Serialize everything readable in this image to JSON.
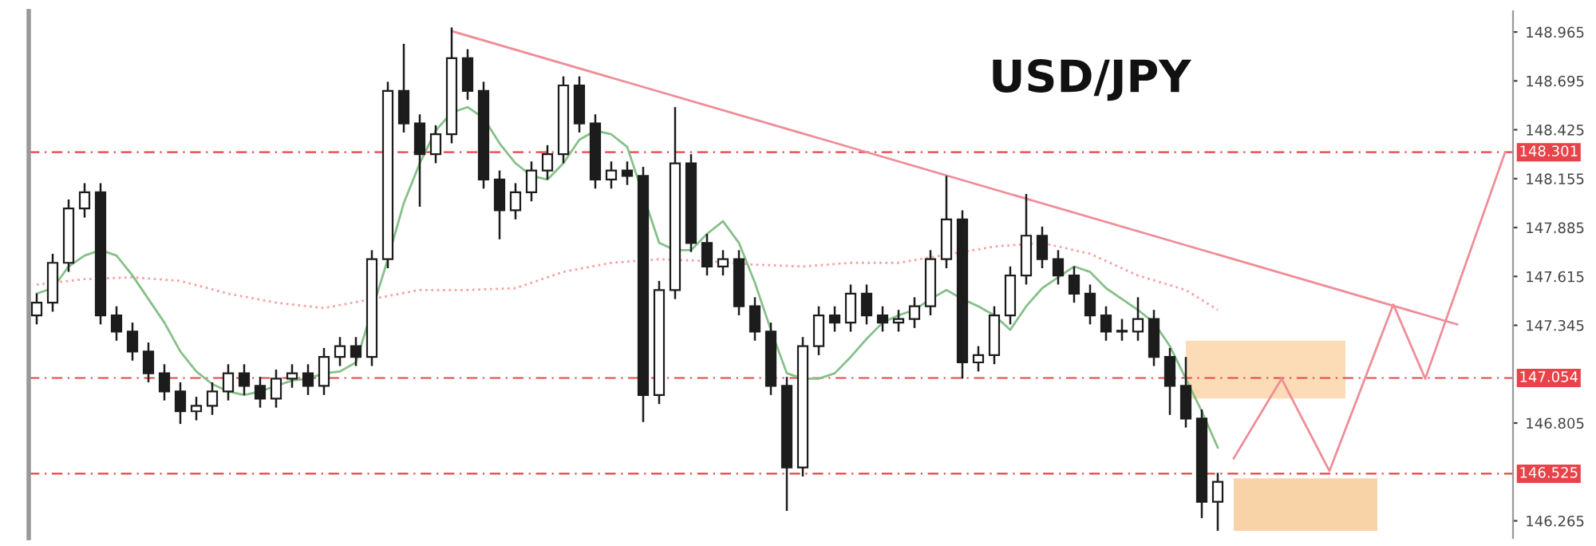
{
  "chart_data": {
    "type": "candlestick",
    "title": "USD/JPY",
    "categories": [
      null,
      null,
      null,
      null,
      null,
      null,
      null,
      null,
      null,
      null,
      null,
      null,
      null,
      null,
      null,
      null,
      null,
      null,
      null,
      null,
      null,
      null,
      null,
      null,
      null,
      null,
      null,
      null,
      null,
      null,
      null,
      null,
      null,
      null,
      null,
      null,
      null,
      null,
      null,
      null,
      null,
      null,
      null,
      null,
      null,
      null,
      null,
      null,
      null,
      null,
      null,
      null,
      null,
      null,
      null,
      null,
      null,
      null,
      null,
      null,
      null,
      null,
      null,
      null,
      null,
      null,
      null,
      null,
      null,
      null,
      null,
      null,
      null,
      null,
      null,
      null,
      null,
      null,
      null,
      null,
      null,
      null,
      null,
      null,
      null,
      null,
      null,
      null,
      null,
      null,
      null,
      null,
      null
    ],
    "ylim": [
      146.17,
      149.08
    ],
    "yticks": [
      148.965,
      148.695,
      148.425,
      148.155,
      147.885,
      147.615,
      147.345,
      146.805,
      146.265
    ],
    "tick_labels": "y",
    "grid": false,
    "ref_lines": [
      {
        "axis": "y",
        "value": 148.301,
        "label": "148.301",
        "color": "#e8434a",
        "line_style": "dashed"
      },
      {
        "axis": "y",
        "value": 147.054,
        "label": "147.054",
        "color": "#e8434a",
        "line_style": "dashed"
      },
      {
        "axis": "y",
        "value": 146.525,
        "label": "146.525",
        "color": "#e8434a",
        "line_style": "dashed"
      }
    ],
    "series": [
      {
        "type": "line",
        "color": "#fcdcb6",
        "values": [
          null,
          null,
          null,
          null,
          null,
          null,
          null,
          null,
          null,
          null,
          null,
          null,
          null,
          null,
          null,
          null,
          null,
          null,
          null,
          null,
          null,
          null,
          null,
          null,
          null,
          null,
          null,
          null,
          null,
          null,
          null,
          null,
          null,
          null,
          null,
          null,
          null,
          null,
          null,
          null,
          null,
          null,
          null,
          null,
          null,
          null,
          null,
          null,
          null,
          null,
          null,
          null,
          null,
          null,
          null,
          null,
          null,
          null,
          null,
          null,
          null,
          null,
          null,
          null,
          null,
          null,
          null,
          null,
          null,
          null,
          null,
          null,
          null,
          null,
          null,
          null,
          null,
          null,
          null,
          null,
          null,
          null,
          null,
          null,
          null,
          null,
          null,
          null,
          null,
          null,
          null,
          null,
          null
        ],
        "upper": [
          null,
          null,
          null,
          null,
          null,
          null,
          null,
          null,
          null,
          null,
          null,
          null,
          null,
          null,
          null,
          null,
          null,
          null,
          null,
          null,
          null,
          null,
          null,
          null,
          null,
          null,
          null,
          null,
          null,
          null,
          null,
          null,
          null,
          null,
          null,
          null,
          null,
          null,
          null,
          null,
          null,
          null,
          null,
          null,
          null,
          null,
          null,
          null,
          null,
          null,
          null,
          null,
          null,
          null,
          null,
          null,
          null,
          null,
          null,
          null,
          null,
          null,
          null,
          null,
          null,
          null,
          null,
          null,
          null,
          null,
          null,
          null,
          147.26,
          147.26,
          147.26,
          147.26,
          147.26,
          147.26,
          147.26,
          147.26,
          147.26,
          147.26,
          147.26,
          null,
          null,
          null,
          null,
          null,
          null,
          null,
          null,
          null,
          null
        ],
        "lower": [
          null,
          null,
          null,
          null,
          null,
          null,
          null,
          null,
          null,
          null,
          null,
          null,
          null,
          null,
          null,
          null,
          null,
          null,
          null,
          null,
          null,
          null,
          null,
          null,
          null,
          null,
          null,
          null,
          null,
          null,
          null,
          null,
          null,
          null,
          null,
          null,
          null,
          null,
          null,
          null,
          null,
          null,
          null,
          null,
          null,
          null,
          null,
          null,
          null,
          null,
          null,
          null,
          null,
          null,
          null,
          null,
          null,
          null,
          null,
          null,
          null,
          null,
          null,
          null,
          null,
          null,
          null,
          null,
          null,
          null,
          null,
          null,
          146.94,
          146.94,
          146.94,
          146.94,
          146.94,
          146.94,
          146.94,
          146.94,
          146.94,
          146.94,
          146.94,
          null,
          null,
          null,
          null,
          null,
          null,
          null,
          null,
          null,
          null
        ]
      },
      {
        "type": "line",
        "color": "#f9d3a8",
        "values": [
          null,
          null,
          null,
          null,
          null,
          null,
          null,
          null,
          null,
          null,
          null,
          null,
          null,
          null,
          null,
          null,
          null,
          null,
          null,
          null,
          null,
          null,
          null,
          null,
          null,
          null,
          null,
          null,
          null,
          null,
          null,
          null,
          null,
          null,
          null,
          null,
          null,
          null,
          null,
          null,
          null,
          null,
          null,
          null,
          null,
          null,
          null,
          null,
          null,
          null,
          null,
          null,
          null,
          null,
          null,
          null,
          null,
          null,
          null,
          null,
          null,
          null,
          null,
          null,
          null,
          null,
          null,
          null,
          null,
          null,
          null,
          null,
          null,
          null,
          null,
          null,
          null,
          null,
          null,
          null,
          null,
          null,
          null,
          null,
          null,
          null,
          null,
          null,
          null,
          null,
          null,
          null,
          null
        ],
        "upper": [
          null,
          null,
          null,
          null,
          null,
          null,
          null,
          null,
          null,
          null,
          null,
          null,
          null,
          null,
          null,
          null,
          null,
          null,
          null,
          null,
          null,
          null,
          null,
          null,
          null,
          null,
          null,
          null,
          null,
          null,
          null,
          null,
          null,
          null,
          null,
          null,
          null,
          null,
          null,
          null,
          null,
          null,
          null,
          null,
          null,
          null,
          null,
          null,
          null,
          null,
          null,
          null,
          null,
          null,
          null,
          null,
          null,
          null,
          null,
          null,
          null,
          null,
          null,
          null,
          null,
          null,
          null,
          null,
          null,
          null,
          null,
          null,
          null,
          null,
          null,
          146.5,
          146.5,
          146.5,
          146.5,
          146.5,
          146.5,
          146.5,
          146.5,
          146.5,
          146.5,
          null,
          null,
          null,
          null,
          null,
          null,
          null,
          null
        ],
        "lower": [
          null,
          null,
          null,
          null,
          null,
          null,
          null,
          null,
          null,
          null,
          null,
          null,
          null,
          null,
          null,
          null,
          null,
          null,
          null,
          null,
          null,
          null,
          null,
          null,
          null,
          null,
          null,
          null,
          null,
          null,
          null,
          null,
          null,
          null,
          null,
          null,
          null,
          null,
          null,
          null,
          null,
          null,
          null,
          null,
          null,
          null,
          null,
          null,
          null,
          null,
          null,
          null,
          null,
          null,
          null,
          null,
          null,
          null,
          null,
          null,
          null,
          null,
          null,
          null,
          null,
          null,
          null,
          null,
          null,
          null,
          null,
          null,
          null,
          null,
          null,
          146.21,
          146.21,
          146.21,
          146.21,
          146.21,
          146.21,
          146.21,
          146.21,
          146.21,
          146.21,
          null,
          null,
          null,
          null,
          null,
          null,
          null,
          null
        ]
      },
      {
        "type": "line",
        "color": "#f4a3a3",
        "line_style": "dotted",
        "values": [
          147.57,
          null,
          null,
          147.6,
          null,
          null,
          147.61,
          null,
          null,
          147.59,
          null,
          null,
          147.52,
          null,
          null,
          147.47,
          null,
          null,
          147.44,
          null,
          null,
          null,
          null,
          null,
          147.54,
          null,
          null,
          147.54,
          null,
          null,
          147.55,
          null,
          null,
          147.64,
          null,
          null,
          147.69,
          null,
          null,
          147.71,
          null,
          null,
          147.7,
          null,
          null,
          147.68,
          null,
          null,
          147.67,
          null,
          null,
          147.69,
          null,
          null,
          147.69,
          null,
          null,
          null,
          null,
          null,
          147.78,
          null,
          null,
          147.8,
          null,
          null,
          147.74,
          null,
          null,
          147.62,
          null,
          null,
          147.54,
          null,
          147.43,
          null,
          null,
          null,
          null,
          null,
          null,
          null,
          null,
          null,
          null,
          null,
          null,
          null,
          null,
          null,
          null,
          null,
          null
        ]
      },
      {
        "type": "line",
        "color": "#86c08a",
        "line_style": "solid",
        "values": [
          147.52,
          147.55,
          147.67,
          147.73,
          147.76,
          147.73,
          147.62,
          147.49,
          147.36,
          147.2,
          147.09,
          147.02,
          146.98,
          146.96,
          146.98,
          147.01,
          147.04,
          147.05,
          147.08,
          147.09,
          147.14,
          null,
          147.71,
          148.02,
          148.24,
          148.42,
          148.52,
          148.55,
          148.49,
          148.35,
          148.24,
          148.17,
          148.15,
          148.24,
          148.37,
          148.42,
          148.4,
          148.33,
          null,
          147.8,
          147.76,
          147.76,
          147.85,
          147.92,
          147.8,
          147.58,
          147.32,
          147.08,
          147.05,
          147.05,
          147.08,
          147.17,
          147.27,
          147.36,
          147.4,
          147.43,
          147.49,
          147.54,
          147.49,
          147.45,
          147.4,
          147.32,
          147.45,
          147.55,
          147.61,
          147.67,
          147.64,
          147.55,
          147.49,
          147.43,
          147.36,
          147.23,
          147.05,
          146.87,
          146.67,
          null,
          null,
          null,
          null,
          null,
          null,
          null,
          null,
          null,
          null,
          null,
          null,
          null,
          null,
          null,
          null,
          null,
          null
        ]
      },
      {
        "color": "#1c1c1c",
        "ohlc": [
          [
            147.4,
            147.52,
            147.35,
            147.47
          ],
          [
            147.47,
            147.74,
            147.42,
            147.69
          ],
          [
            147.69,
            148.04,
            147.64,
            147.99
          ],
          [
            147.99,
            148.13,
            147.94,
            148.08
          ],
          [
            148.08,
            148.13,
            147.35,
            147.4
          ],
          [
            147.4,
            147.45,
            147.26,
            147.31
          ],
          [
            147.31,
            147.36,
            147.15,
            147.2
          ],
          [
            147.2,
            147.25,
            147.03,
            147.08
          ],
          [
            147.08,
            147.13,
            146.93,
            146.98
          ],
          [
            146.98,
            147.03,
            146.8,
            146.87
          ],
          [
            146.87,
            146.95,
            146.82,
            146.9
          ],
          [
            146.9,
            147.03,
            146.85,
            146.98
          ],
          [
            146.98,
            147.13,
            146.93,
            147.08
          ],
          [
            147.08,
            147.13,
            146.96,
            147.01
          ],
          [
            147.01,
            147.06,
            146.89,
            146.94
          ],
          [
            146.94,
            147.1,
            146.89,
            147.05
          ],
          [
            147.05,
            147.13,
            147.0,
            147.08
          ],
          [
            147.08,
            147.13,
            146.96,
            147.01
          ],
          [
            147.01,
            147.22,
            146.96,
            147.17
          ],
          [
            147.17,
            147.28,
            147.12,
            147.23
          ],
          [
            147.23,
            147.28,
            147.12,
            147.17
          ],
          [
            147.17,
            147.76,
            147.12,
            147.71
          ],
          [
            147.71,
            148.69,
            147.66,
            148.64
          ],
          [
            148.64,
            148.9,
            148.41,
            148.46
          ],
          [
            148.46,
            148.51,
            148.0,
            148.29
          ],
          [
            148.29,
            148.45,
            148.24,
            148.4
          ],
          [
            148.4,
            148.99,
            148.35,
            148.82
          ],
          [
            148.82,
            148.87,
            148.59,
            148.64
          ],
          [
            148.64,
            148.69,
            148.1,
            148.15
          ],
          [
            148.15,
            148.2,
            147.82,
            147.98
          ],
          [
            147.98,
            148.13,
            147.93,
            148.08
          ],
          [
            148.08,
            148.25,
            148.03,
            148.2
          ],
          [
            148.2,
            148.34,
            148.15,
            148.29
          ],
          [
            148.29,
            148.72,
            148.24,
            148.67
          ],
          [
            148.67,
            148.72,
            148.41,
            148.46
          ],
          [
            148.46,
            148.51,
            148.1,
            148.15
          ],
          [
            148.15,
            148.25,
            148.1,
            148.2
          ],
          [
            148.2,
            148.25,
            148.12,
            148.17
          ],
          [
            148.17,
            148.22,
            146.81,
            146.96
          ],
          [
            146.96,
            147.59,
            146.91,
            147.54
          ],
          [
            147.54,
            148.55,
            147.49,
            148.24
          ],
          [
            148.24,
            148.29,
            147.75,
            147.8
          ],
          [
            147.8,
            147.85,
            147.62,
            147.67
          ],
          [
            147.67,
            147.76,
            147.62,
            147.71
          ],
          [
            147.71,
            147.76,
            147.4,
            147.45
          ],
          [
            147.45,
            147.5,
            147.26,
            147.31
          ],
          [
            147.31,
            147.36,
            146.96,
            147.01
          ],
          [
            147.01,
            147.06,
            146.32,
            146.56
          ],
          [
            146.56,
            147.28,
            146.51,
            147.23
          ],
          [
            147.23,
            147.45,
            147.18,
            147.4
          ],
          [
            147.4,
            147.45,
            147.31,
            147.36
          ],
          [
            147.36,
            147.57,
            147.31,
            147.52
          ],
          [
            147.52,
            147.57,
            147.35,
            147.4
          ],
          [
            147.4,
            147.45,
            147.31,
            147.36
          ],
          [
            147.36,
            147.43,
            147.31,
            147.38
          ],
          [
            147.38,
            147.5,
            147.33,
            147.45
          ],
          [
            147.45,
            147.76,
            147.4,
            147.71
          ],
          [
            147.71,
            148.17,
            147.66,
            147.93
          ],
          [
            147.93,
            147.98,
            147.05,
            147.14
          ],
          [
            147.14,
            147.23,
            147.09,
            147.18
          ],
          [
            147.18,
            147.45,
            147.13,
            147.4
          ],
          [
            147.4,
            147.67,
            147.35,
            147.62
          ],
          [
            147.62,
            148.07,
            147.57,
            147.84
          ],
          [
            147.84,
            147.89,
            147.66,
            147.71
          ],
          [
            147.71,
            147.76,
            147.57,
            147.62
          ],
          [
            147.62,
            147.67,
            147.47,
            147.52
          ],
          [
            147.52,
            147.57,
            147.35,
            147.4
          ],
          [
            147.4,
            147.45,
            147.26,
            147.31
          ],
          [
            147.31,
            147.38,
            147.26,
            147.31
          ],
          [
            147.31,
            147.5,
            147.26,
            147.38
          ],
          [
            147.38,
            147.43,
            147.12,
            147.17
          ],
          [
            147.17,
            147.22,
            146.85,
            147.01
          ],
          [
            147.01,
            147.17,
            146.78,
            146.83
          ],
          [
            146.83,
            146.88,
            146.28,
            146.37
          ],
          [
            146.37,
            146.53,
            146.21,
            146.48
          ],
          null,
          null,
          null,
          null,
          null,
          null,
          null,
          null,
          null,
          null,
          null,
          null,
          null,
          null,
          null,
          null,
          null,
          null
        ]
      },
      {
        "type": "line",
        "color": "#ef8d98",
        "line_style": "solid",
        "values": [
          null,
          null,
          null,
          null,
          null,
          null,
          null,
          null,
          null,
          null,
          null,
          null,
          null,
          null,
          null,
          null,
          null,
          null,
          null,
          null,
          null,
          null,
          null,
          null,
          null,
          null,
          148.97,
          null,
          null,
          null,
          null,
          null,
          null,
          null,
          null,
          null,
          null,
          null,
          null,
          null,
          null,
          null,
          null,
          null,
          null,
          null,
          null,
          null,
          null,
          null,
          null,
          null,
          null,
          null,
          null,
          null,
          null,
          null,
          null,
          null,
          null,
          null,
          null,
          null,
          null,
          null,
          null,
          null,
          null,
          null,
          null,
          null,
          null,
          null,
          null,
          null,
          null,
          null,
          null,
          null,
          null,
          null,
          null,
          null,
          null,
          null,
          null,
          null,
          null,
          147.35,
          null,
          null,
          null
        ]
      },
      {
        "type": "line",
        "color": "#ef8d98",
        "line_style": "solid",
        "values": [
          null,
          null,
          null,
          null,
          null,
          null,
          null,
          null,
          null,
          null,
          null,
          null,
          null,
          null,
          null,
          null,
          null,
          null,
          null,
          null,
          null,
          null,
          null,
          null,
          null,
          null,
          null,
          null,
          null,
          null,
          null,
          null,
          null,
          null,
          null,
          null,
          null,
          null,
          null,
          null,
          null,
          null,
          null,
          null,
          null,
          null,
          null,
          null,
          null,
          null,
          null,
          null,
          null,
          null,
          null,
          null,
          null,
          null,
          null,
          null,
          null,
          null,
          null,
          null,
          null,
          null,
          null,
          null,
          null,
          null,
          null,
          null,
          null,
          null,
          null,
          146.61,
          null,
          null,
          147.05,
          null,
          null,
          146.54,
          null,
          null,
          null,
          147.46,
          null,
          147.05,
          null,
          null,
          null,
          null,
          148.3
        ]
      }
    ]
  }
}
